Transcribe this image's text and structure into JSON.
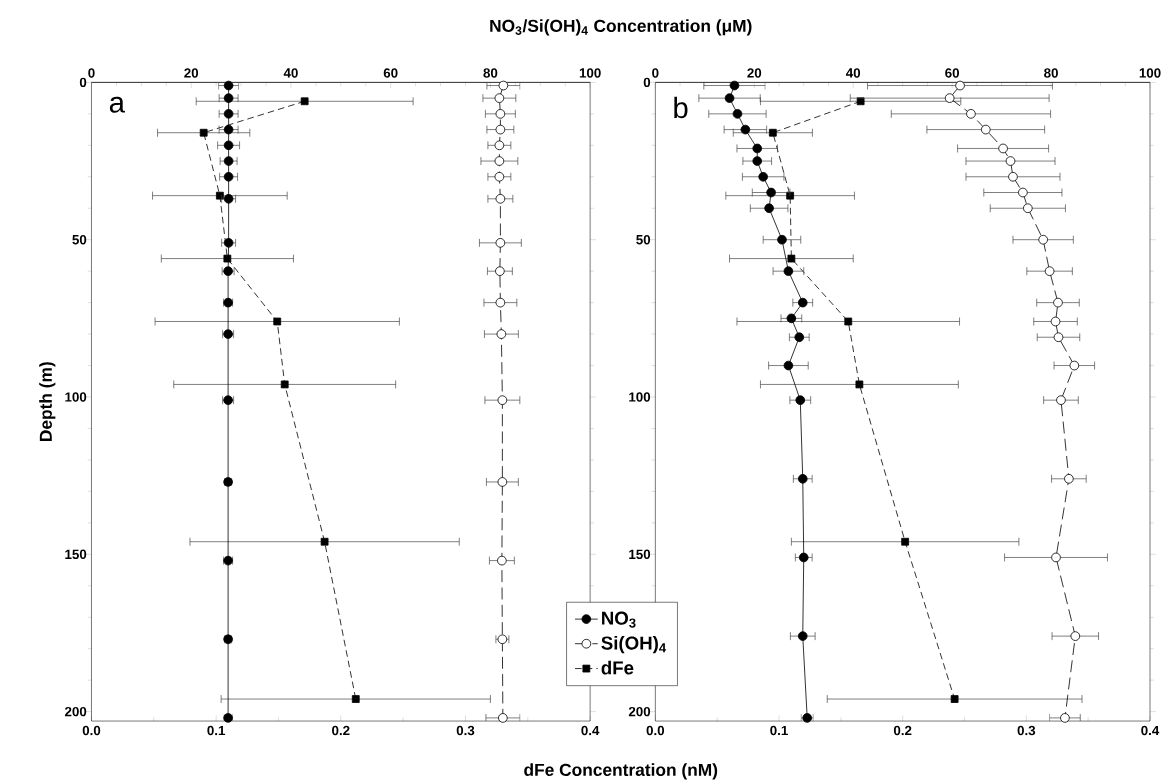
{
  "chart_data": [
    {
      "type": "line",
      "orientation": "horizontal",
      "x2label": "NO$_{3}$/Si(OH)$_{4}$ Concentration (μM)",
      "xlabel": "dFe Concentration (nM)",
      "ylabel": "Depth (m)",
      "ylim": [
        203,
        0
      ],
      "yticks": [
        0,
        50,
        100,
        150,
        200
      ],
      "xlim": [
        0,
        0.4
      ],
      "xticks": [
        {
          "value": 0,
          "label": "0.0"
        },
        0.1,
        0.2,
        0.3,
        0.4
      ],
      "x2lim": [
        0,
        100
      ],
      "x2ticks": [
        0,
        20,
        40,
        60,
        80,
        100
      ],
      "annotations": [
        "a"
      ],
      "series": [
        {
          "color": "#000000",
          "marker": "circle",
          "line_style": "solid",
          "axis": "x2",
          "x": [
            1,
            5,
            10,
            15,
            20,
            25,
            30,
            37,
            51,
            60,
            70,
            80,
            101,
            127,
            152,
            177,
            202
          ],
          "values": [
            27.5,
            27.5,
            27.5,
            27.5,
            27.5,
            27.5,
            27.5,
            27.5,
            27.5,
            27.4,
            27.4,
            27.4,
            27.4,
            27.4,
            27.4,
            27.4,
            27.4
          ],
          "errors": [
            2.0,
            1.9,
            1.9,
            1.9,
            2.2,
            1.7,
            1.8,
            1.4,
            1.4,
            1.2,
            0.9,
            1.1,
            1.1,
            0.7,
            0.9,
            0.7,
            0.8
          ]
        },
        {
          "color": "#000000",
          "marker": "circle",
          "line_style": "dashed",
          "axis": "x2",
          "x": [
            1,
            5,
            10,
            15,
            20,
            25,
            30,
            37,
            51,
            60,
            70,
            80,
            101,
            127,
            152,
            177,
            202
          ],
          "values": [
            82.6,
            81.8,
            82.0,
            82.0,
            81.8,
            81.8,
            81.8,
            82.0,
            82.0,
            81.9,
            82.0,
            82.2,
            82.4,
            82.4,
            82.3,
            82.4,
            82.5
          ],
          "errors": [
            3.3,
            3.3,
            3.0,
            2.7,
            2.3,
            3.7,
            2.3,
            2.5,
            4.2,
            2.5,
            3.3,
            3.4,
            3.5,
            3.2,
            2.5,
            1.3,
            3.4
          ]
        },
        {
          "color": "#000000",
          "marker": "square",
          "line_style": "dashed",
          "x": [
            6,
            16,
            36,
            56,
            76,
            96,
            146,
            196
          ],
          "values": [
            0.171,
            0.09,
            0.103,
            0.109,
            0.149,
            0.155,
            0.187,
            0.212
          ],
          "errors": [
            0.087,
            0.037,
            0.054,
            0.053,
            0.098,
            0.089,
            0.108,
            0.108
          ]
        }
      ]
    },
    {
      "type": "line",
      "orientation": "horizontal",
      "legend": "bottom left",
      "ylim": [
        203,
        0
      ],
      "yticks": [
        0,
        50,
        100,
        150,
        200
      ],
      "xlim": [
        0,
        0.4
      ],
      "xticks": [
        {
          "value": 0,
          "label": "0.0"
        },
        0.1,
        0.2,
        0.3,
        0.4
      ],
      "x2lim": [
        0,
        100
      ],
      "x2ticks": [
        0,
        20,
        40,
        60,
        80,
        100
      ],
      "annotations": [
        "b"
      ],
      "series": [
        {
          "name": "NO$_{3}$",
          "color": "#000000",
          "marker": "circle",
          "line_style": "solid",
          "axis": "x2",
          "x": [
            1,
            5,
            10,
            15,
            21,
            25,
            30,
            35,
            40,
            50,
            60,
            70,
            75,
            81,
            90,
            101,
            126,
            151,
            176,
            202
          ],
          "values": [
            16.0,
            15.0,
            16.6,
            18.2,
            20.6,
            20.6,
            21.8,
            23.4,
            23.0,
            25.6,
            26.9,
            29.8,
            27.5,
            29.1,
            26.9,
            29.3,
            29.8,
            30.0,
            29.8,
            30.7
          ],
          "errors": [
            6.2,
            6.2,
            5.8,
            4.3,
            4.1,
            2.9,
            4.2,
            3.8,
            3.8,
            3.8,
            3.1,
            2.0,
            2.1,
            2.0,
            4.0,
            2.1,
            1.9,
            1.7,
            2.5,
            1.2
          ]
        },
        {
          "name": "Si(OH)$_{4}$",
          "color": "#000000",
          "marker": "circle",
          "line_style": "dashed",
          "axis": "x2",
          "x": [
            1,
            5,
            10,
            15,
            21,
            25,
            30,
            35,
            40,
            50,
            60,
            70,
            76,
            81,
            90,
            101,
            126,
            151,
            176,
            202
          ],
          "values": [
            61.6,
            59.5,
            63.8,
            66.8,
            70.3,
            71.8,
            72.3,
            74.3,
            75.3,
            78.4,
            79.7,
            81.4,
            80.9,
            81.5,
            84.7,
            82.0,
            83.6,
            81.0,
            84.9,
            82.8
          ],
          "errors": [
            18.7,
            20.1,
            16.1,
            11.9,
            9.2,
            9.0,
            9.5,
            7.9,
            7.6,
            6.1,
            4.6,
            4.3,
            4.4,
            4.3,
            4.1,
            3.5,
            3.5,
            10.4,
            4.7,
            3.1
          ]
        },
        {
          "name": "dFe",
          "color": "#000000",
          "marker": "square",
          "line_style": "dashed",
          "x": [
            6,
            16,
            36,
            56,
            76,
            96,
            146,
            196
          ],
          "values": [
            0.166,
            0.095,
            0.109,
            0.11,
            0.156,
            0.165,
            0.202,
            0.242
          ],
          "errors": [
            0.081,
            0.032,
            0.052,
            0.05,
            0.09,
            0.08,
            0.092,
            0.103
          ]
        }
      ]
    }
  ]
}
